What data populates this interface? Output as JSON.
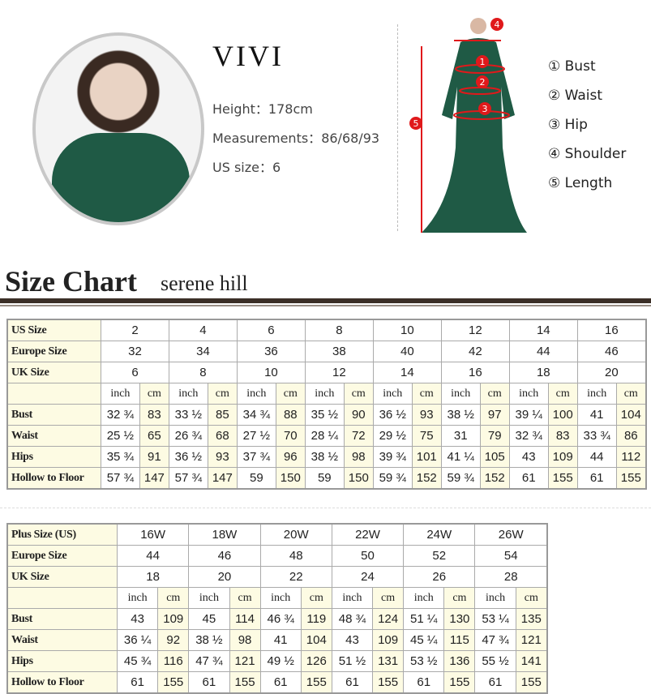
{
  "model": {
    "name": "VIVI",
    "height_label": "Height：",
    "height": "178cm",
    "measurements_label": "Measurements：",
    "measurements": "86/68/93",
    "us_size_label": "US size：",
    "us_size": "6"
  },
  "diagram": {
    "markers": [
      "1",
      "2",
      "3",
      "4",
      "5"
    ],
    "legend": [
      "① Bust",
      "② Waist",
      "③ Hip",
      "④ Shoulder",
      "⑤ Length"
    ],
    "marker_color": "#e0191b",
    "dress_color": "#1f5a45"
  },
  "size_chart": {
    "title": "Size Chart",
    "subtitle": "serene hill"
  },
  "table1": {
    "header_rows": [
      {
        "label": "US Size",
        "values": [
          "2",
          "4",
          "6",
          "8",
          "10",
          "12",
          "14",
          "16"
        ]
      },
      {
        "label": "Europe Size",
        "values": [
          "32",
          "34",
          "36",
          "38",
          "40",
          "42",
          "44",
          "46"
        ]
      },
      {
        "label": "UK Size",
        "values": [
          "6",
          "8",
          "10",
          "12",
          "14",
          "16",
          "18",
          "20"
        ]
      }
    ],
    "units": [
      "inch",
      "cm"
    ],
    "rows": [
      {
        "label": "Bust",
        "values": [
          "32 ¾",
          "83",
          "33 ½",
          "85",
          "34 ¾",
          "88",
          "35 ½",
          "90",
          "36 ½",
          "93",
          "38 ½",
          "97",
          "39 ¼",
          "100",
          "41",
          "104"
        ]
      },
      {
        "label": "Waist",
        "values": [
          "25 ½",
          "65",
          "26 ¾",
          "68",
          "27 ½",
          "70",
          "28 ¼",
          "72",
          "29 ½",
          "75",
          "31",
          "79",
          "32 ¾",
          "83",
          "33 ¾",
          "86"
        ]
      },
      {
        "label": "Hips",
        "values": [
          "35 ¾",
          "91",
          "36 ½",
          "93",
          "37 ¾",
          "96",
          "38 ½",
          "98",
          "39 ¾",
          "101",
          "41 ¼",
          "105",
          "43",
          "109",
          "44",
          "112"
        ]
      },
      {
        "label": "Hollow to Floor",
        "values": [
          "57 ¾",
          "147",
          "57 ¾",
          "147",
          "59",
          "150",
          "59",
          "150",
          "59 ¾",
          "152",
          "59 ¾",
          "152",
          "61",
          "155",
          "61",
          "155"
        ]
      }
    ]
  },
  "table2": {
    "header_rows": [
      {
        "label": "Plus Size (US)",
        "values": [
          "16W",
          "18W",
          "20W",
          "22W",
          "24W",
          "26W"
        ]
      },
      {
        "label": "Europe Size",
        "values": [
          "44",
          "46",
          "48",
          "50",
          "52",
          "54"
        ]
      },
      {
        "label": "UK Size",
        "values": [
          "18",
          "20",
          "22",
          "24",
          "26",
          "28"
        ]
      }
    ],
    "units": [
      "inch",
      "cm"
    ],
    "rows": [
      {
        "label": "Bust",
        "values": [
          "43",
          "109",
          "45",
          "114",
          "46 ¾",
          "119",
          "48 ¾",
          "124",
          "51 ¼",
          "130",
          "53 ¼",
          "135"
        ]
      },
      {
        "label": "Waist",
        "values": [
          "36 ¼",
          "92",
          "38 ½",
          "98",
          "41",
          "104",
          "43",
          "109",
          "45 ¼",
          "115",
          "47 ¾",
          "121"
        ]
      },
      {
        "label": "Hips",
        "values": [
          "45 ¾",
          "116",
          "47 ¾",
          "121",
          "49 ½",
          "126",
          "51 ½",
          "131",
          "53 ½",
          "136",
          "55 ½",
          "141"
        ]
      },
      {
        "label": "Hollow to Floor",
        "values": [
          "61",
          "155",
          "61",
          "155",
          "61",
          "155",
          "61",
          "155",
          "61",
          "155",
          "61",
          "155"
        ]
      }
    ]
  }
}
